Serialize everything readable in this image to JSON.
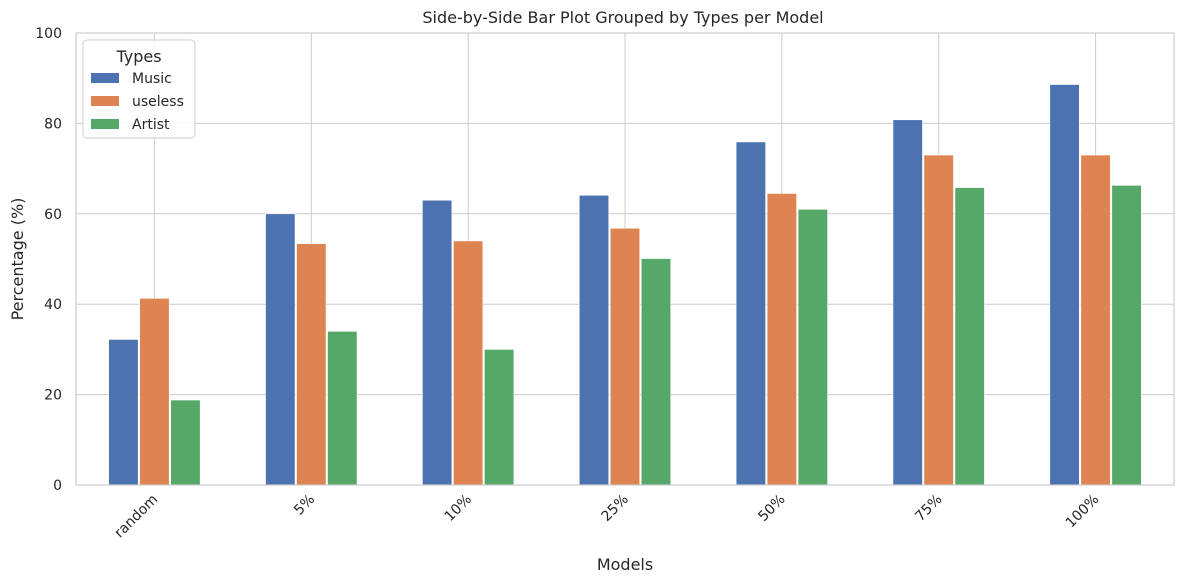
{
  "chart_data": {
    "type": "bar",
    "title": "Side-by-Side Bar Plot Grouped by Types per Model",
    "xlabel": "Models",
    "ylabel": "Percentage (%)",
    "ylim": [
      0,
      100
    ],
    "yticks": [
      0,
      20,
      40,
      60,
      80,
      100
    ],
    "grid": true,
    "legend": {
      "title": "Types",
      "placement": "top-left"
    },
    "categories": [
      "random",
      "5%",
      "10%",
      "25%",
      "50%",
      "75%",
      "100%"
    ],
    "series": [
      {
        "name": "Music",
        "color": "#4c72b0",
        "values": [
          32.2,
          60.0,
          63.0,
          64.1,
          75.9,
          80.8,
          88.6
        ]
      },
      {
        "name": "useless",
        "color": "#dd8452",
        "values": [
          41.3,
          53.4,
          54.0,
          56.8,
          64.5,
          73.0,
          73.0
        ]
      },
      {
        "name": "Artist",
        "color": "#55a868",
        "values": [
          18.8,
          34.0,
          30.0,
          50.1,
          61.0,
          65.8,
          66.3
        ]
      }
    ]
  }
}
